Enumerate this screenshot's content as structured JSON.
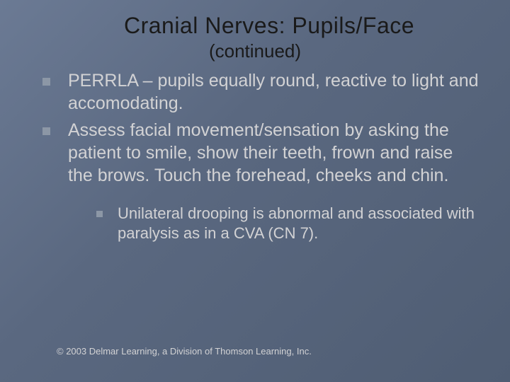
{
  "slide": {
    "title": "Cranial Nerves: Pupils/Face",
    "subtitle": "(continued)",
    "bullets": [
      {
        "text": "PERRLA – pupils equally round, reactive to light and accomodating."
      },
      {
        "text": "Assess facial movement/sensation by asking the patient to smile, show their teeth, frown and raise the brows.  Touch the forehead, cheeks and chin."
      }
    ],
    "subbullets": [
      {
        "text": "Unilateral drooping is abnormal and associated with paralysis as in a CVA (CN 7)."
      }
    ],
    "copyright": "© 2003 Delmar Learning, a Division of Thomson Learning, Inc.",
    "colors": {
      "bg_start": "#6b7a94",
      "bg_end": "#4f5d73",
      "title_color": "#1a1a1a",
      "body_color": "#d2d2d4",
      "bullet_color": "#8c97a6"
    },
    "typography": {
      "title_fontsize": 32,
      "subtitle_fontsize": 26,
      "body_fontsize": 25,
      "sub_fontsize": 22,
      "copyright_fontsize": 13,
      "font_family": "Verdana"
    }
  }
}
